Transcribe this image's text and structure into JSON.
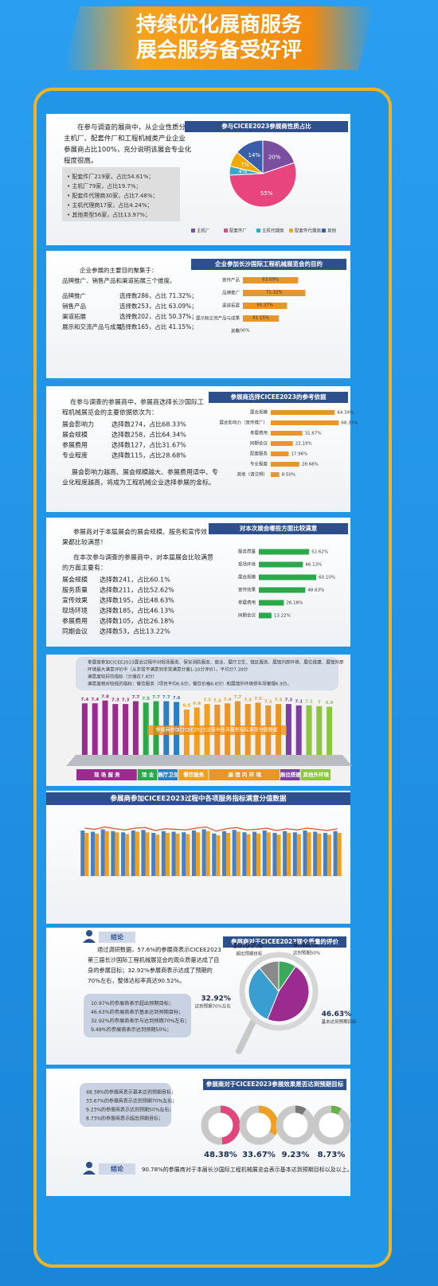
{
  "header": {
    "lines": [
      "持续优化展商服务",
      "展会服务备受好评"
    ]
  },
  "section1": {
    "intro": [
      "在参与调查的展商中，从企业性质分析：",
      "主机厂、配套件厂和工程机械类产业企业",
      "参展商占比100%，充分说明该展会专业化",
      "程度很高。"
    ],
    "list": [
      "• 配套件厂219家，占比54.61%；",
      "• 主机厂79家，占比19.7%；",
      "• 配套件代理商30家，占比7.48%；",
      "• 主机代理商17家，占比4.24%；",
      "• 其他类型56家，占比13.97%；"
    ]
  },
  "section2": {
    "intro": [
      "企业参展的主要目的聚集于：",
      "品牌推广、销售产品和渠道拓展三个维度。"
    ],
    "rows": [
      [
        "品牌推广",
        "选择数286，占比 71.32%；"
      ],
      [
        "销售产品",
        "选择数253，占比 63.09%；"
      ],
      [
        "渠道拓展",
        "选择数202，占比 50.37%；"
      ],
      [
        "展示和交流产品与成果",
        "选择数165，占比 41.15%；"
      ]
    ]
  },
  "section3": {
    "intro": [
      "在参与调查的参展商中，参展商选择长沙国际工",
      "程机械展览会的主要依据依次为："
    ],
    "rows": [
      [
        "展会影响力",
        "选择数274，占比68.33%"
      ],
      [
        "展会规模",
        "选择数258，占比64.34%"
      ],
      [
        "参展费用",
        "选择数127，占比31.67%"
      ],
      [
        "专业程度",
        "选择数115，占比28.68%"
      ]
    ],
    "outro": [
      "展会影响力越高、展会规模越大、参展费用适中、专",
      "业化程度越高，将成为工程机械企业选择参展的金标。"
    ]
  },
  "section4": {
    "intro": [
      "参展商对于本届展会的展会规模、服务和宣传效",
      "果都比较满意！"
    ],
    "intro2": [
      "在本次参与调查的参展商中，对本届展会比较满意",
      "的方面主要有："
    ],
    "rows": [
      [
        "展会规模",
        "选择数241，占比60.1%"
      ],
      [
        "服务质量",
        "选择数211，占比52.62%"
      ],
      [
        "宣传效果",
        "选择数195，占比48.63%"
      ],
      [
        "现场环境",
        "选择数185，占比46.13%"
      ],
      [
        "参展费用",
        "选择数105，占比26.18%"
      ],
      [
        "同期会议",
        "选择数53，占比13.22%"
      ]
    ]
  },
  "section5": {
    "notes": [
      "参展商参加CICEE2023展会过程中对现场服务、保安消防服务、商业、展厅卫生、馆区服务、展馆内部环境、展位搭建、展馆外部",
      "环境最大满意评价中（从非常不满意到非常满意分值1-10分评价），平均分7.39分",
      "满意度较好的指标（分值在7.8分）",
      "满意度相对较低的指标：餐饮服务（项目平均6.6分，餐饮价格6.8分）和展馆外环境停车场管理6.9分。"
    ]
  },
  "section7": {
    "label": "结论",
    "intro": [
      "通过调研数据，57.6%的参展商表示CICEE2023",
      "第三届长沙国际工程机械展览会的观众质量达成了自",
      "身的参展目标；32.92%参展商表示达成了预期的",
      "70%左右，整体达标率高达90.52%。"
    ],
    "list": [
      "10.97%的参展商表示超出预期目标；",
      "46.63%的参展商表示基本达到预期目标；",
      "32.92%的参展商表示与达到预期70%左右；",
      "9.48%的参展商表示达到预期50%；"
    ]
  },
  "section8": {
    "list": [
      "48.38%的参展商表示基本达到预期目标；",
      "33.67%的参展商表示达到预期70%左右；",
      "9.23%的参展商表示达到预期50%左右；",
      "8.73%的参展商表示超出预期目标；"
    ],
    "label": "结论",
    "conclusion": "90.78%的参展商对于本届长沙国际工程机械展览会表示基本达到预期目标以及以上。"
  },
  "chart_data": [
    {
      "type": "pie",
      "title": "参与CICEE2023参展商性质占比",
      "categories": [
        "主机厂",
        "配套件厂",
        "主机代理商",
        "配套件代理商",
        "其他"
      ],
      "values": [
        19.7,
        54.61,
        4.24,
        7.48,
        13.97
      ],
      "value_labels": [
        "20%",
        "55%",
        "4%",
        "7%",
        "14%"
      ],
      "colors": [
        "#7b4fa0",
        "#e8457f",
        "#3aa6c9",
        "#f2a900",
        "#3b5ea8"
      ]
    },
    {
      "type": "bar",
      "orientation": "horizontal",
      "title": "企业参加长沙国际工程机械展览会的目的",
      "categories": [
        "宣传产品",
        "品牌推广",
        "渠道拓展",
        "展示和交流产品与成果",
        "其他"
      ],
      "values": [
        63.09,
        71.32,
        50.37,
        41.15,
        0
      ],
      "value_labels": [
        "63.09%",
        "71.32%",
        "50.37%",
        "41.15%",
        "0.00%"
      ],
      "color": "#e8962a",
      "xlim": [
        0,
        100
      ]
    },
    {
      "type": "bar",
      "orientation": "horizontal",
      "title": "参展商选择CICEE2023的参考依据",
      "categories": [
        "展会规模",
        "展会影响力（宣传推广）",
        "参展费用",
        "同期会议",
        "配套服务",
        "专业程度",
        "其他（请注明）"
      ],
      "values": [
        64.34,
        68.33,
        31.67,
        22.19,
        17.96,
        28.68,
        8.5
      ],
      "value_labels": [
        "64.34%",
        "68.33%",
        "31.67%",
        "22.19%",
        "17.96%",
        "28.68%",
        "8.50%"
      ],
      "color": "#e8962a",
      "xlim": [
        0,
        100
      ]
    },
    {
      "type": "bar",
      "orientation": "horizontal",
      "title": "对本次展会哪些方面比较满意",
      "categories": [
        "服务质量",
        "现场环境",
        "展会规模",
        "宣传效果",
        "参展费用",
        "同期会议"
      ],
      "values": [
        52.62,
        46.13,
        60.1,
        48.63,
        26.18,
        13.22
      ],
      "value_labels": [
        "52.62%",
        "46.13%",
        "60.10%",
        "48.63%",
        "26.18%",
        "13.22%"
      ],
      "color": "#2aa84a",
      "xlim": [
        0,
        100
      ]
    },
    {
      "type": "column",
      "title": "参展商参加CICEE2023过程中各项服务指标满意分值数据",
      "ylim": [
        0,
        8
      ],
      "series": [
        {
          "name": "现 场 服 务",
          "color": "#9b2b8e",
          "values": [
            7.4,
            7.4,
            7.8,
            7.3,
            7.3,
            7.7
          ]
        },
        {
          "name": "馆 业",
          "color": "#2aa84a",
          "values": [
            7.5,
            7.7
          ]
        },
        {
          "name": "展厅卫生",
          "color": "#2a7fc4",
          "values": [
            7.7,
            7.6
          ]
        },
        {
          "name": "餐饮服务",
          "color": "#f0a020",
          "values": [
            6.5,
            6.8,
            7.3
          ]
        },
        {
          "name": "展 馆 内 环 境",
          "color": "#e8962a",
          "values": [
            7.2,
            7.4,
            7.7,
            7.3,
            7.5,
            7.1,
            7.3
          ]
        },
        {
          "name": "展位搭建",
          "color": "#7b3fa0",
          "values": [
            7.3,
            7.1
          ]
        },
        {
          "name": "其他外环境",
          "color": "#8cc63f",
          "values": [
            7.1,
            7.0,
            6.9
          ]
        }
      ]
    },
    {
      "type": "grouped_column",
      "title": "参展商参加CICEE2023过程中各项服务指标满意分值数据",
      "ylim": [
        0,
        10
      ],
      "series": [
        {
          "style": "bar",
          "color": "#4a7fc1",
          "values": [
            7.6,
            7.4,
            7.8,
            7.5,
            7.3,
            7.6,
            7.7,
            7.2,
            7.5,
            7.4,
            7.3,
            7.6,
            7.8,
            7.1,
            7.5,
            7.7,
            7.3,
            7.4,
            7.6,
            7.2,
            7.5,
            7.3,
            7.6,
            7.4,
            7.2,
            7.5
          ]
        },
        {
          "style": "bar",
          "color": "#f0a020",
          "values": [
            7.2,
            7.1,
            7.5,
            7.3,
            7.0,
            7.4,
            7.3,
            6.9,
            7.2,
            7.1,
            7.0,
            7.3,
            7.5,
            6.8,
            7.2,
            7.4,
            7.0,
            7.1,
            7.3,
            6.9,
            7.2,
            7.0,
            7.3,
            7.1,
            6.9,
            7.2
          ]
        },
        {
          "style": "line",
          "color": "#e0502a",
          "values": [
            8.0,
            7.8,
            8.2,
            7.9,
            7.7,
            8.0,
            8.1,
            7.6,
            7.9,
            7.8,
            7.7,
            8.0,
            8.2,
            7.5,
            7.9,
            8.1,
            7.7,
            7.8,
            8.0,
            7.6,
            7.9,
            7.7,
            8.0,
            7.8,
            7.6,
            7.9
          ]
        }
      ]
    },
    {
      "type": "pie",
      "title": "参展商对于CICEE2023观众质量的评价",
      "categories": [
        "达到预期50%",
        "基本达到预期目标",
        "达到预期70%左右",
        "超出预期目标"
      ],
      "values": [
        9.48,
        46.63,
        32.92,
        10.97
      ],
      "value_labels": [
        "9.48%",
        "46.63%",
        "32.92%",
        "10.97%"
      ],
      "colors": [
        "#3aaa5a",
        "#9b2b8e",
        "#3a9fd0",
        "#8a8a8a"
      ]
    },
    {
      "type": "donut",
      "title": "参展商对于CICEE2023参展效果是否达到预期目标",
      "values": [
        48.38,
        33.67,
        9.23,
        8.73
      ],
      "value_labels": [
        "48.38%",
        "33.67%",
        "9.23%",
        "8.73%"
      ],
      "colors": [
        "#e0467c",
        "#f0a020",
        "#777777",
        "#6ab04c"
      ]
    }
  ]
}
